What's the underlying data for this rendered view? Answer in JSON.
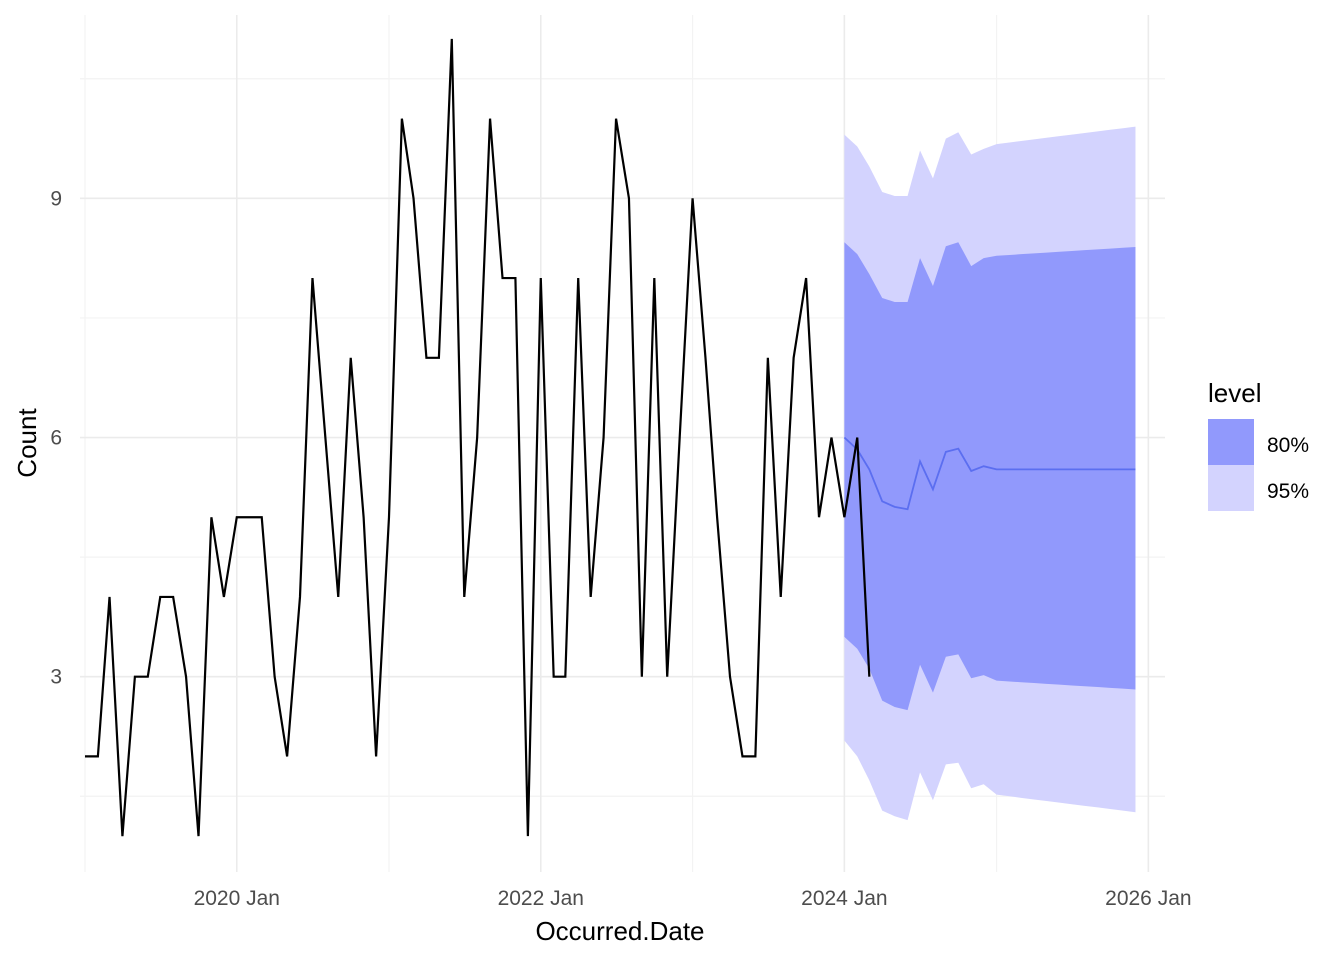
{
  "chart_data": {
    "type": "line",
    "title": "",
    "xlabel": "Occurred.Date",
    "ylabel": "Count",
    "grid": true,
    "xlim": [
      "2018-12-20",
      "2026-02-10"
    ],
    "ylim": [
      0.55,
      11.3
    ],
    "x_ticks": [
      {
        "date": "2020-01-01",
        "label": "2020 Jan"
      },
      {
        "date": "2022-01-01",
        "label": "2022 Jan"
      },
      {
        "date": "2024-01-01",
        "label": "2024 Jan"
      },
      {
        "date": "2026-01-01",
        "label": "2026 Jan"
      }
    ],
    "x_minor_breaks": [
      "2019-01-01",
      "2021-01-01",
      "2023-01-01",
      "2025-01-01"
    ],
    "y_ticks": [
      3,
      6,
      9
    ],
    "y_minor_breaks": [
      1.5,
      4.5,
      7.5,
      10.5
    ],
    "legend": {
      "title": "level",
      "position": "right",
      "items": [
        {
          "label": "80%",
          "color": "#9199fc"
        },
        {
          "label": "95%",
          "color": "#d3d3fe"
        }
      ]
    },
    "colors": {
      "observed": "#000000",
      "forecast_mean": "#5b6ef0",
      "band_80": "#9199fc",
      "band_95": "#d3d3fe",
      "grid_major": "#ebebeb",
      "grid_minor": "#f3f3f3"
    },
    "observed": {
      "start": "2019-01",
      "values": [
        2,
        2,
        4,
        1,
        3,
        3,
        4,
        4,
        3,
        1,
        5,
        4,
        5,
        5,
        5,
        3,
        2,
        4,
        8,
        6,
        4,
        7,
        5,
        2,
        5,
        10,
        9,
        7,
        7,
        11,
        4,
        6,
        10,
        8,
        8,
        1,
        8,
        3,
        3,
        8,
        4,
        6,
        10,
        9,
        3,
        8,
        3,
        6,
        9,
        7,
        5,
        3,
        2,
        2,
        7,
        4,
        7,
        8,
        5,
        6,
        5,
        6,
        3
      ]
    },
    "forecast": {
      "start": "2024-01",
      "mean": [
        6.0,
        5.85,
        5.6,
        5.2,
        5.13,
        5.1,
        5.7,
        5.35,
        5.82,
        5.86,
        5.58,
        5.64,
        5.6,
        5.6,
        5.6,
        5.6,
        5.6,
        5.6,
        5.6,
        5.6,
        5.6,
        5.6,
        5.6,
        5.6
      ],
      "lo80": [
        3.5,
        3.35,
        3.1,
        2.7,
        2.62,
        2.58,
        3.15,
        2.8,
        3.25,
        3.28,
        2.98,
        3.02,
        2.95,
        2.94,
        2.93,
        2.92,
        2.91,
        2.9,
        2.89,
        2.88,
        2.87,
        2.86,
        2.85,
        2.84
      ],
      "hi80": [
        8.45,
        8.3,
        8.05,
        7.75,
        7.7,
        7.7,
        8.25,
        7.9,
        8.4,
        8.45,
        8.15,
        8.25,
        8.28,
        8.29,
        8.3,
        8.31,
        8.32,
        8.33,
        8.34,
        8.35,
        8.36,
        8.37,
        8.38,
        8.39
      ],
      "lo95": [
        2.2,
        2.0,
        1.7,
        1.32,
        1.25,
        1.2,
        1.8,
        1.45,
        1.9,
        1.92,
        1.6,
        1.65,
        1.52,
        1.5,
        1.48,
        1.46,
        1.44,
        1.42,
        1.4,
        1.38,
        1.36,
        1.34,
        1.32,
        1.3
      ],
      "hi95": [
        9.8,
        9.65,
        9.4,
        9.08,
        9.03,
        9.03,
        9.6,
        9.25,
        9.75,
        9.83,
        9.55,
        9.62,
        9.68,
        9.7,
        9.72,
        9.74,
        9.76,
        9.78,
        9.8,
        9.82,
        9.84,
        9.86,
        9.88,
        9.9
      ]
    }
  }
}
